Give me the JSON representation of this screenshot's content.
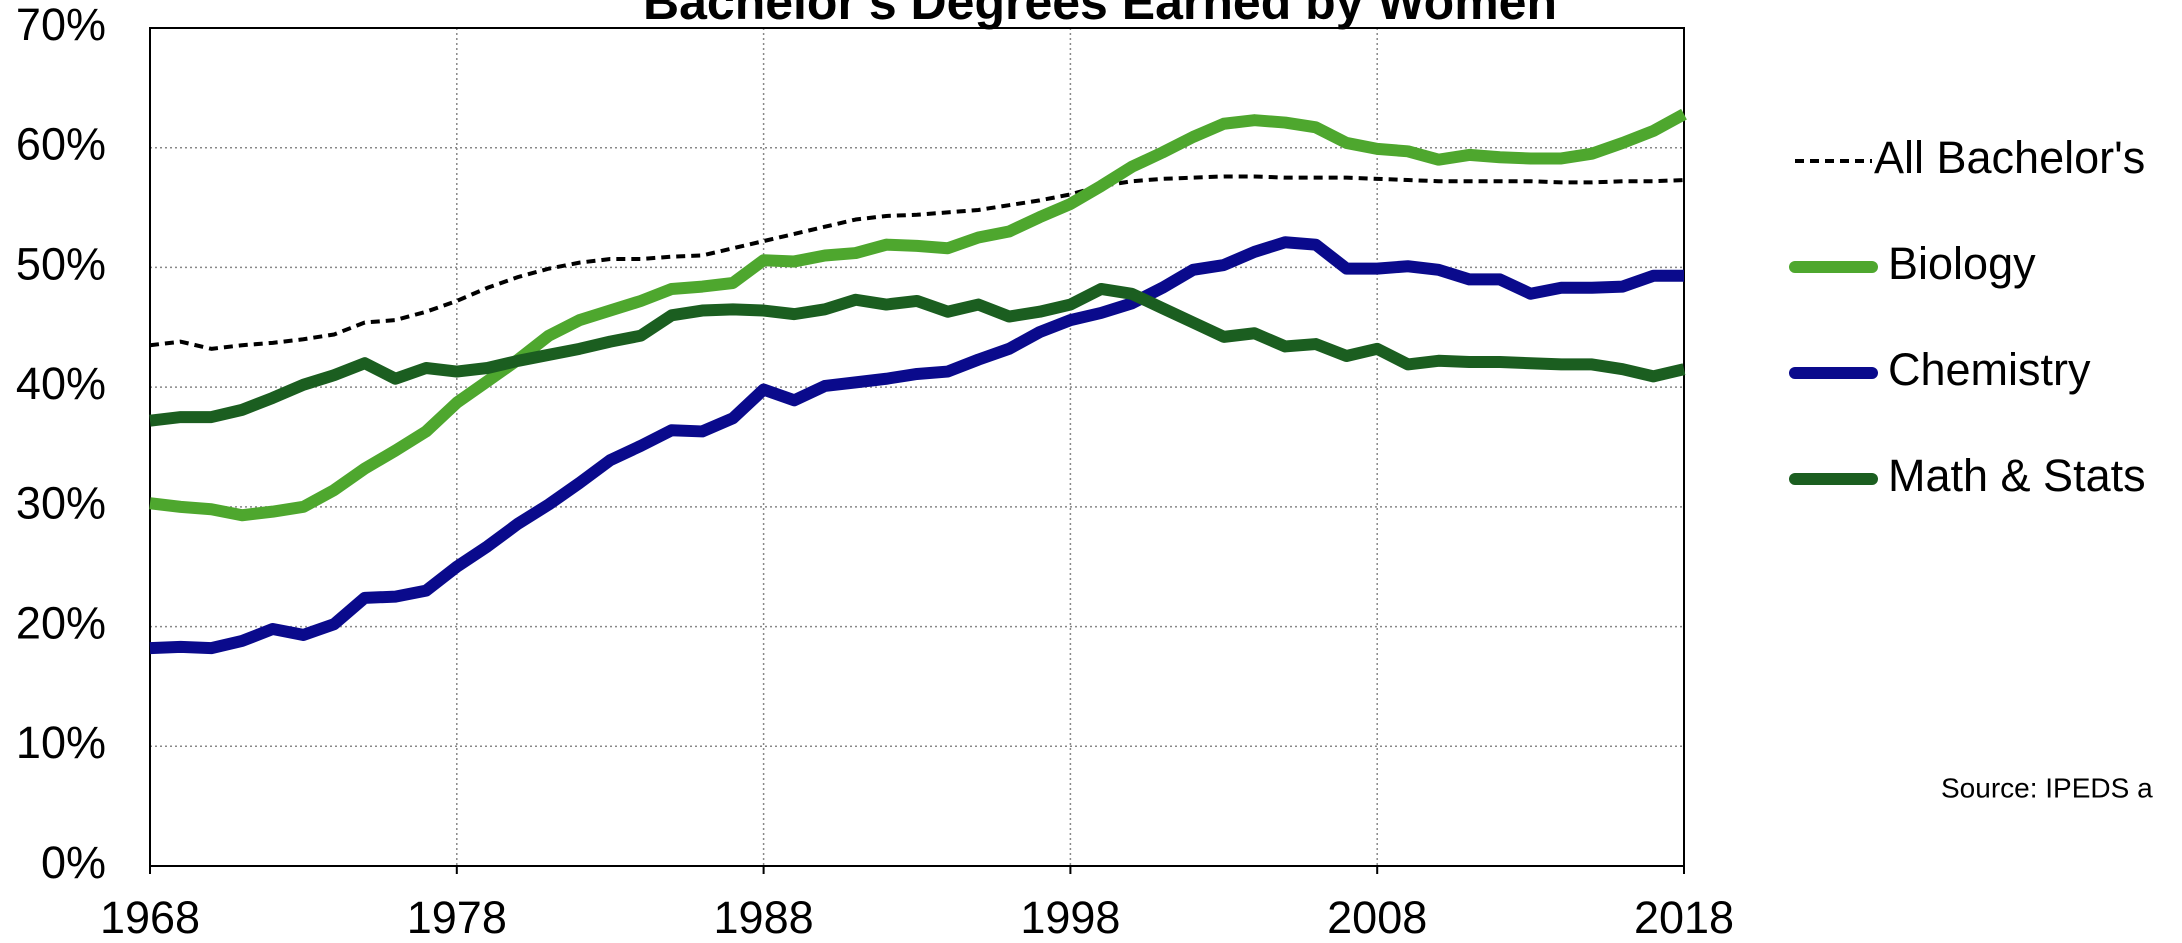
{
  "chart_data": {
    "type": "line",
    "title": "Bachelor's Degrees Earned by Women",
    "source": "Source: IPEDS a",
    "x": [
      1968,
      1969,
      1970,
      1971,
      1972,
      1973,
      1974,
      1975,
      1976,
      1977,
      1978,
      1979,
      1980,
      1981,
      1982,
      1983,
      1984,
      1985,
      1986,
      1987,
      1988,
      1989,
      1990,
      1991,
      1992,
      1993,
      1994,
      1995,
      1996,
      1997,
      1998,
      1999,
      2000,
      2001,
      2002,
      2003,
      2004,
      2005,
      2006,
      2007,
      2008,
      2009,
      2010,
      2011,
      2012,
      2013,
      2014,
      2015,
      2016,
      2017,
      2018
    ],
    "series": [
      {
        "name": "All Bachelor's",
        "color": "#000000",
        "dashed": true,
        "values": [
          43.5,
          43.8,
          43.2,
          43.5,
          43.7,
          44.0,
          44.4,
          45.4,
          45.6,
          46.3,
          47.2,
          48.3,
          49.2,
          49.9,
          50.4,
          50.7,
          50.7,
          50.9,
          51.0,
          51.6,
          52.2,
          52.8,
          53.4,
          54.0,
          54.3,
          54.4,
          54.6,
          54.8,
          55.2,
          55.6,
          56.1,
          56.8,
          57.2,
          57.4,
          57.5,
          57.6,
          57.6,
          57.5,
          57.5,
          57.5,
          57.4,
          57.3,
          57.2,
          57.2,
          57.2,
          57.2,
          57.1,
          57.1,
          57.2,
          57.2,
          57.3
        ]
      },
      {
        "name": "Biology",
        "color": "#4ea72e",
        "values": [
          30.3,
          30.0,
          29.8,
          29.3,
          29.6,
          30.0,
          31.4,
          33.2,
          34.7,
          36.3,
          38.7,
          40.5,
          42.3,
          44.3,
          45.6,
          46.4,
          47.2,
          48.2,
          48.4,
          48.7,
          50.6,
          50.5,
          51.0,
          51.2,
          51.9,
          51.8,
          51.6,
          52.5,
          53.0,
          54.2,
          55.3,
          56.8,
          58.4,
          59.6,
          60.9,
          62.0,
          62.3,
          62.1,
          61.7,
          60.4,
          59.9,
          59.7,
          59.0,
          59.4,
          59.2,
          59.1,
          59.1,
          59.5,
          60.4,
          61.4,
          62.8
        ]
      },
      {
        "name": "Chemistry",
        "color": "#0a0a8c",
        "values": [
          18.2,
          18.3,
          18.2,
          18.8,
          19.8,
          19.3,
          20.2,
          22.4,
          22.5,
          23.0,
          25.0,
          26.7,
          28.6,
          30.2,
          32.0,
          33.9,
          35.1,
          36.4,
          36.3,
          37.4,
          39.8,
          38.9,
          40.1,
          40.4,
          40.7,
          41.1,
          41.3,
          42.3,
          43.2,
          44.6,
          45.6,
          46.2,
          47.0,
          48.3,
          49.8,
          50.2,
          51.3,
          52.1,
          51.9,
          49.9,
          49.9,
          50.1,
          49.8,
          49.0,
          49.0,
          47.8,
          48.3,
          48.3,
          48.4,
          49.3,
          49.3
        ]
      },
      {
        "name": "Math & Stats",
        "color": "#1b5e20",
        "values": [
          37.2,
          37.5,
          37.5,
          38.1,
          39.1,
          40.2,
          41.0,
          42.0,
          40.7,
          41.6,
          41.3,
          41.6,
          42.2,
          42.7,
          43.2,
          43.8,
          44.3,
          46.0,
          46.4,
          46.5,
          46.4,
          46.1,
          46.5,
          47.3,
          46.9,
          47.2,
          46.3,
          46.9,
          45.9,
          46.3,
          46.9,
          48.2,
          47.8,
          46.6,
          45.4,
          44.2,
          44.5,
          43.4,
          43.6,
          42.6,
          43.2,
          41.9,
          42.2,
          42.1,
          42.1,
          42.0,
          41.9,
          41.9,
          41.5,
          40.9,
          41.5
        ]
      }
    ],
    "xlim": [
      1968,
      2018
    ],
    "xticks": [
      1968,
      1978,
      1988,
      1998,
      2008,
      2018
    ],
    "ylim": [
      0,
      70
    ],
    "yticks": [
      {
        "value": 0,
        "label": "0%"
      },
      {
        "value": 10,
        "label": "10%"
      },
      {
        "value": 20,
        "label": "20%"
      },
      {
        "value": 30,
        "label": "30%"
      },
      {
        "value": 40,
        "label": "40%"
      },
      {
        "value": 50,
        "label": "50%"
      },
      {
        "value": 60,
        "label": "60%"
      },
      {
        "value": 70,
        "label": "70%"
      }
    ],
    "grid": true,
    "legend": "right"
  }
}
